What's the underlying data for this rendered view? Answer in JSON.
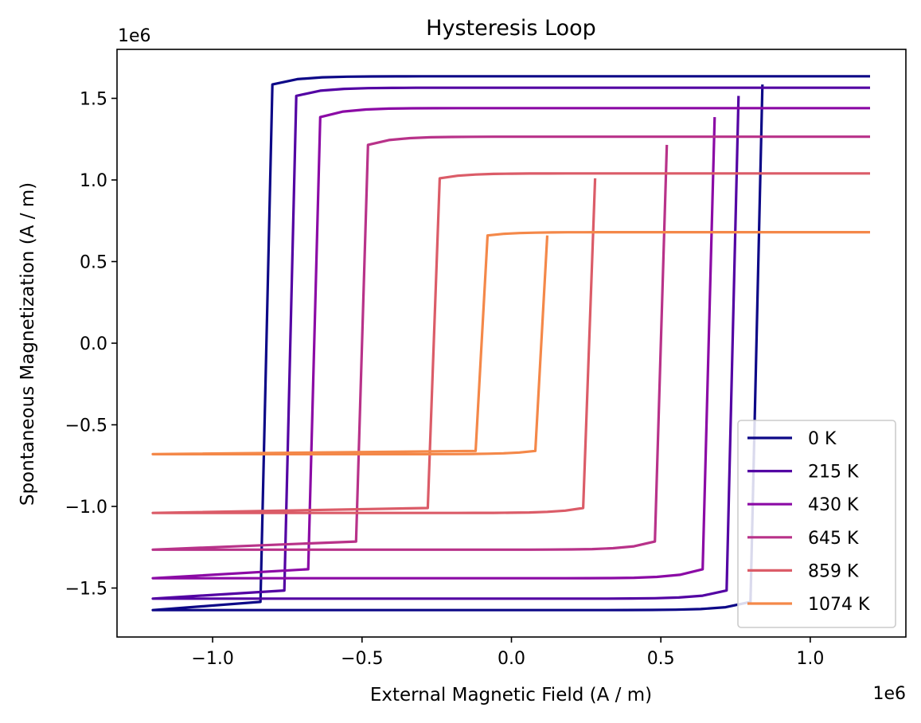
{
  "chart_data": {
    "type": "line",
    "title": "Hysteresis Loop",
    "xlabel": "External Magnetic Field (A / m)",
    "ylabel": "Spontaneous Magnetization (A / m)",
    "x_offset_label": "1e6",
    "y_offset_label": "1e6",
    "xlim": [
      -1.32,
      1.32
    ],
    "ylim": [
      -1.8,
      1.8
    ],
    "x_ticks": [
      -1.0,
      -0.5,
      0.0,
      0.5,
      1.0
    ],
    "y_ticks": [
      -1.5,
      -1.0,
      -0.5,
      0.0,
      0.5,
      1.0,
      1.5
    ],
    "x_tick_labels": [
      "−1.0",
      "−0.5",
      "0.0",
      "0.5",
      "1.0"
    ],
    "y_tick_labels": [
      "−1.5",
      "−1.0",
      "−0.5",
      "0.0",
      "0.5",
      "1.0",
      "1.5"
    ],
    "x_range": [
      -1.2,
      1.2
    ],
    "legend_position": "lower-right",
    "series": [
      {
        "name": "0 K",
        "color": "#0d0887",
        "ms": 1.635,
        "hc": 0.84,
        "drop": 0.05,
        "slope": 0.04,
        "h_upper_start": -0.8
      },
      {
        "name": "215 K",
        "color": "#5302a3",
        "ms": 1.565,
        "hc": 0.76,
        "drop": 0.05,
        "slope": 0.04,
        "h_upper_start": -0.72
      },
      {
        "name": "430 K",
        "color": "#8b0aa5",
        "ms": 1.44,
        "hc": 0.68,
        "drop": 0.055,
        "slope": 0.04,
        "h_upper_start": -0.64
      },
      {
        "name": "645 K",
        "color": "#b83289",
        "ms": 1.265,
        "hc": 0.52,
        "drop": 0.05,
        "slope": 0.04,
        "h_upper_start": -0.48
      },
      {
        "name": "859 K",
        "color": "#db5c68",
        "ms": 1.04,
        "hc": 0.28,
        "drop": 0.03,
        "slope": 0.04,
        "h_upper_start": -0.24
      },
      {
        "name": "1074 K",
        "color": "#f48849",
        "ms": 0.68,
        "hc": 0.12,
        "drop": 0.02,
        "slope": 0.04,
        "h_upper_start": -0.08
      }
    ]
  }
}
